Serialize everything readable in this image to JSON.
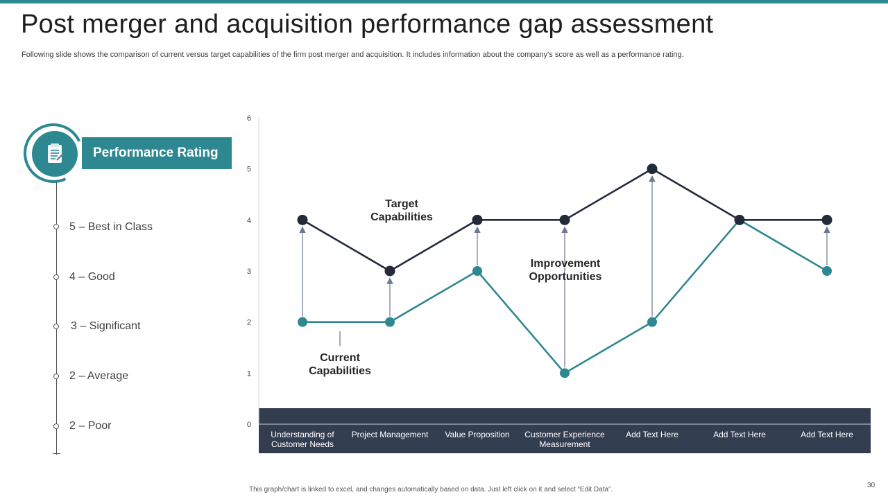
{
  "slide": {
    "title": "Post merger and acquisition performance gap assessment",
    "subtitle": "Following slide shows the comparison of current versus target capabilities of the firm post merger and acquisition. It includes information about the company's score as well as a performance rating.",
    "footnote": "This graph/chart is linked to excel, and changes automatically based on data. Just left click on it and select “Edit Data”.",
    "page_number": "30"
  },
  "rating_panel": {
    "icon": "checklist-icon",
    "header": "Performance Rating",
    "items": [
      {
        "label": "5 – Best in Class"
      },
      {
        "label": "4 – Good"
      },
      {
        "label": "3 – Significant"
      },
      {
        "label": "2 – Average"
      },
      {
        "label": "2 – Poor"
      }
    ]
  },
  "colors": {
    "accent": "#2e8891",
    "target_line": "#232a3a",
    "current_line": "#2e8891",
    "axis_band": "#333d50",
    "arrow": "#6e7890"
  },
  "chart_data": {
    "type": "line",
    "categories": [
      "Understanding of Customer Needs",
      "Project Management",
      "Value Proposition",
      "Customer Experience Measurement",
      "Add Text Here",
      "Add Text Here",
      "Add Text Here"
    ],
    "series": [
      {
        "name": "Target Capabilities",
        "values": [
          4,
          3,
          4,
          4,
          5,
          4,
          4
        ]
      },
      {
        "name": "Current Capabilities",
        "values": [
          2,
          2,
          3,
          1,
          2,
          4,
          3
        ]
      }
    ],
    "ylim": [
      0,
      6
    ],
    "yticks": [
      0,
      1,
      2,
      3,
      4,
      5,
      6
    ],
    "annotations": {
      "target": [
        "Target",
        "Capabilities"
      ],
      "current": [
        "Current",
        "Capabilities"
      ],
      "improvement": [
        "Improvement",
        "Opportunities"
      ]
    },
    "xlabel": "",
    "ylabel": "",
    "grid": false,
    "legend": "none"
  }
}
